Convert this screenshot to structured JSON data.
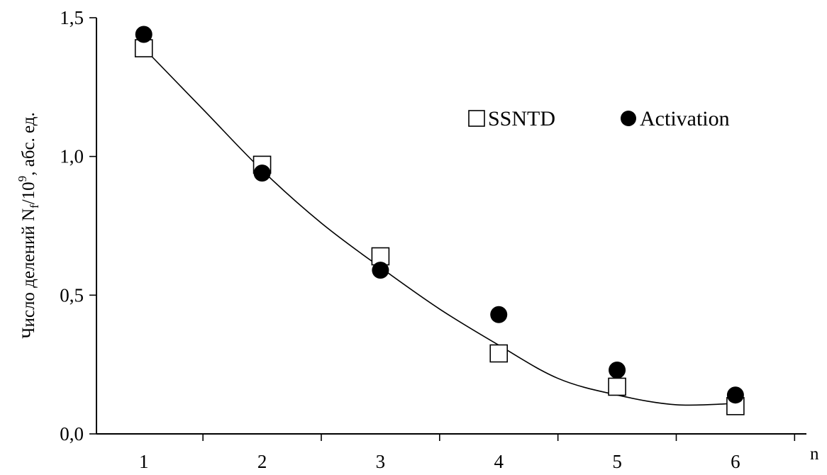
{
  "chart_data": {
    "type": "scatter",
    "xlabel": "n",
    "ylabel": "Число делений N",
    "ylabel_sub": "f",
    "ylabel_mid": "/10",
    "ylabel_sup": "9",
    "ylabel_end": ", абс. ед.",
    "xlim": [
      0.6,
      6.6
    ],
    "ylim": [
      0.0,
      1.5
    ],
    "x_ticks": [
      1,
      2,
      3,
      4,
      5,
      6
    ],
    "x_tick_labels": [
      "1",
      "2",
      "3",
      "4",
      "5",
      "6"
    ],
    "y_ticks": [
      0.0,
      0.5,
      1.0,
      1.5
    ],
    "y_tick_labels": [
      "0,0",
      "0,5",
      "1,0",
      "1,5"
    ],
    "grid": false,
    "legend_position": "upper-right",
    "series": [
      {
        "name": "SSNTD",
        "marker": "open-square",
        "x": [
          1,
          2,
          3,
          4,
          5,
          6
        ],
        "y": [
          1.39,
          0.97,
          0.64,
          0.29,
          0.17,
          0.1
        ]
      },
      {
        "name": "Activation",
        "marker": "filled-circle",
        "x": [
          1,
          2,
          3,
          4,
          5,
          6
        ],
        "y": [
          1.44,
          0.94,
          0.59,
          0.43,
          0.23,
          0.14
        ]
      }
    ],
    "fit_curve": {
      "x": [
        1,
        1.5,
        2,
        2.5,
        3,
        3.5,
        4,
        4.5,
        5,
        5.5,
        6
      ],
      "y": [
        1.39,
        1.17,
        0.95,
        0.76,
        0.6,
        0.45,
        0.32,
        0.2,
        0.14,
        0.105,
        0.11
      ]
    },
    "colors": {
      "ink": "#000000",
      "background": "#ffffff"
    }
  }
}
